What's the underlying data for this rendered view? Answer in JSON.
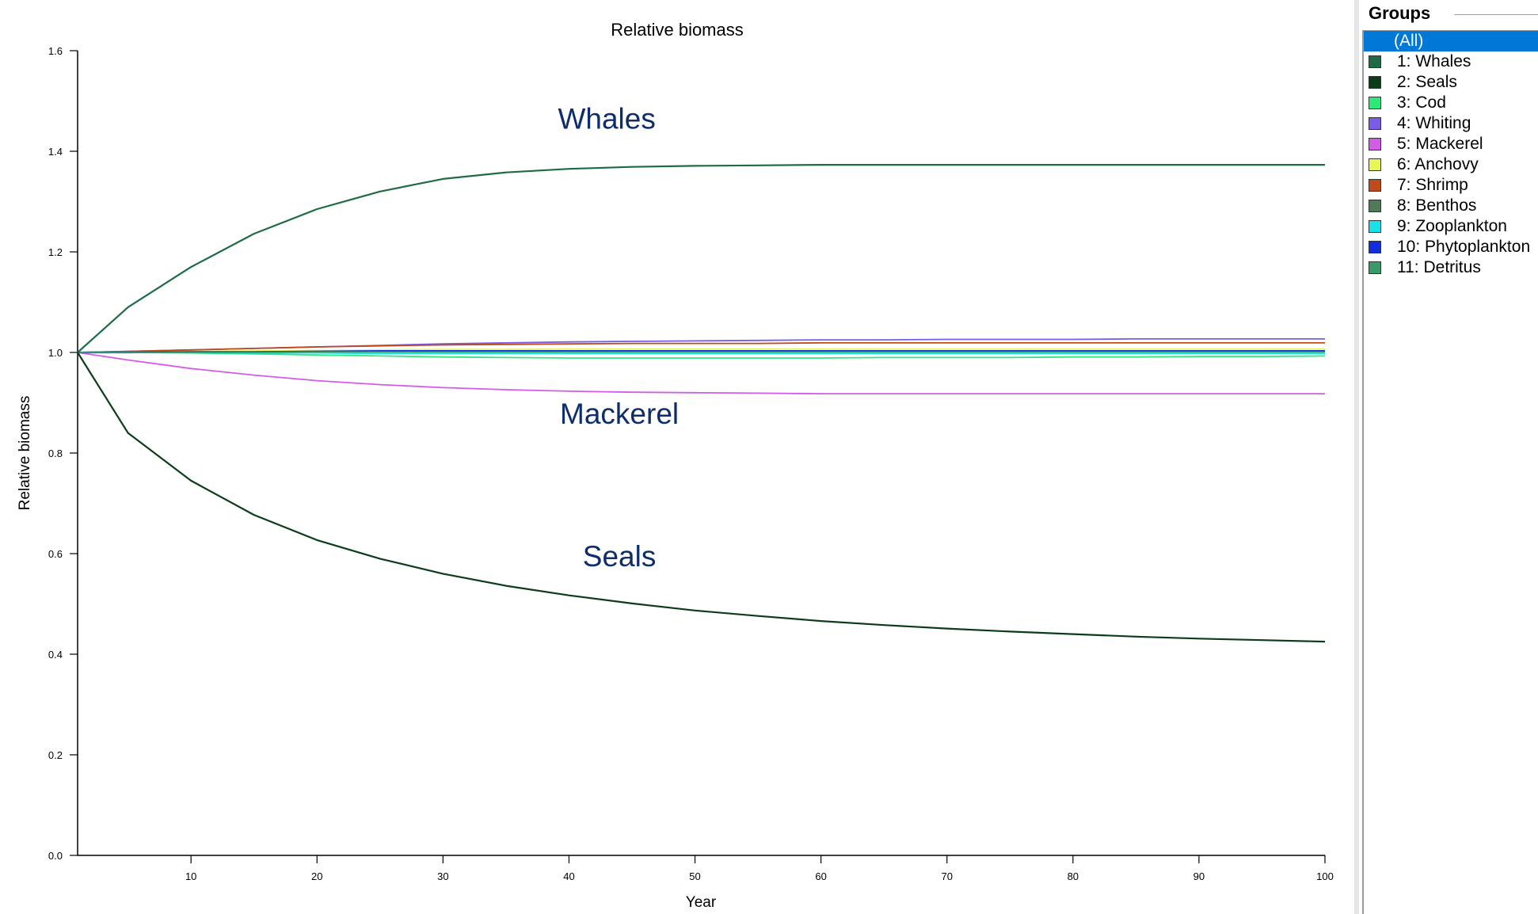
{
  "chart_data": {
    "type": "line",
    "title": "Relative biomass",
    "xlabel": "Year",
    "ylabel": "Relative biomass",
    "xlim": [
      1,
      100
    ],
    "ylim": [
      0,
      1.6
    ],
    "x_ticks": [
      10,
      20,
      30,
      40,
      50,
      60,
      70,
      80,
      90,
      100
    ],
    "y_ticks": [
      0.0,
      0.2,
      0.4,
      0.6,
      0.8,
      1.0,
      1.2,
      1.4,
      1.6
    ],
    "y_tick_labels": [
      "0.0",
      "0.2",
      "0.4",
      "0.6",
      "0.8",
      "1.0",
      "1.2",
      "1.4",
      "1.6"
    ],
    "x_tick_labels": [
      "10",
      "20",
      "30",
      "40",
      "50",
      "60",
      "70",
      "80",
      "90",
      "100"
    ],
    "x": [
      1,
      5,
      10,
      15,
      20,
      25,
      30,
      35,
      40,
      45,
      50,
      55,
      60,
      65,
      70,
      75,
      80,
      85,
      90,
      95,
      100
    ],
    "series": [
      {
        "name": "1: Whales",
        "color": "#1f6b45",
        "values": [
          1.0,
          1.09,
          1.17,
          1.236,
          1.285,
          1.32,
          1.345,
          1.358,
          1.365,
          1.369,
          1.371,
          1.372,
          1.373,
          1.373,
          1.373,
          1.373,
          1.373,
          1.373,
          1.373,
          1.373,
          1.373
        ]
      },
      {
        "name": "2: Seals",
        "color": "#0b3d1a",
        "values": [
          1.0,
          0.84,
          0.745,
          0.677,
          0.627,
          0.59,
          0.56,
          0.536,
          0.517,
          0.501,
          0.487,
          0.476,
          0.466,
          0.458,
          0.451,
          0.445,
          0.44,
          0.435,
          0.431,
          0.428,
          0.425
        ]
      },
      {
        "name": "3: Cod",
        "color": "#2ee87a",
        "values": [
          1.0,
          1.0,
          0.999,
          0.997,
          0.995,
          0.993,
          0.991,
          0.99,
          0.989,
          0.989,
          0.989,
          0.989,
          0.989,
          0.99,
          0.99,
          0.99,
          0.991,
          0.991,
          0.992,
          0.992,
          0.993
        ]
      },
      {
        "name": "4: Whiting",
        "color": "#7b5ce6",
        "values": [
          1.0,
          1.002,
          1.005,
          1.008,
          1.011,
          1.014,
          1.017,
          1.019,
          1.021,
          1.022,
          1.023,
          1.024,
          1.025,
          1.025,
          1.026,
          1.026,
          1.026,
          1.027,
          1.027,
          1.027,
          1.027
        ]
      },
      {
        "name": "5: Mackerel",
        "color": "#d35ce6",
        "values": [
          1.0,
          0.985,
          0.968,
          0.955,
          0.944,
          0.936,
          0.93,
          0.926,
          0.923,
          0.921,
          0.92,
          0.919,
          0.918,
          0.918,
          0.918,
          0.918,
          0.918,
          0.918,
          0.918,
          0.918,
          0.918
        ]
      },
      {
        "name": "6: Anchovy",
        "color": "#e8f55a",
        "values": [
          1.0,
          1.001,
          1.002,
          1.003,
          1.004,
          1.005,
          1.006,
          1.006,
          1.007,
          1.007,
          1.007,
          1.007,
          1.007,
          1.007,
          1.007,
          1.007,
          1.007,
          1.007,
          1.007,
          1.007,
          1.007
        ]
      },
      {
        "name": "7: Shrimp",
        "color": "#c04a1a",
        "values": [
          1.0,
          1.002,
          1.005,
          1.008,
          1.011,
          1.013,
          1.015,
          1.016,
          1.017,
          1.018,
          1.018,
          1.018,
          1.019,
          1.019,
          1.019,
          1.019,
          1.019,
          1.019,
          1.019,
          1.019,
          1.019
        ]
      },
      {
        "name": "8: Benthos",
        "color": "#4f7a5a",
        "values": [
          1.0,
          1.0,
          1.001,
          1.001,
          1.002,
          1.002,
          1.002,
          1.002,
          1.002,
          1.002,
          1.002,
          1.002,
          1.002,
          1.002,
          1.002,
          1.002,
          1.002,
          1.002,
          1.002,
          1.002,
          1.002
        ]
      },
      {
        "name": "9: Zooplankton",
        "color": "#1ae0e8",
        "values": [
          1.0,
          1.0,
          1.0,
          0.999,
          0.999,
          0.998,
          0.998,
          0.998,
          0.998,
          0.998,
          0.998,
          0.998,
          0.998,
          0.998,
          0.998,
          0.998,
          0.998,
          0.998,
          0.998,
          0.998,
          0.998
        ]
      },
      {
        "name": "10: Phytoplankton",
        "color": "#1030e0",
        "values": [
          1.0,
          1.0,
          1.001,
          1.001,
          1.002,
          1.003,
          1.003,
          1.003,
          1.003,
          1.003,
          1.003,
          1.003,
          1.003,
          1.003,
          1.003,
          1.003,
          1.003,
          1.003,
          1.003,
          1.003,
          1.003
        ]
      },
      {
        "name": "11: Detritus",
        "color": "#3a9a6a",
        "values": [
          1.0,
          1.0,
          1.0,
          1.0,
          1.001,
          1.001,
          1.001,
          1.001,
          1.001,
          1.001,
          1.001,
          1.001,
          1.001,
          1.001,
          1.001,
          1.001,
          1.001,
          1.001,
          1.001,
          1.001,
          1.001
        ]
      }
    ],
    "annotations": [
      {
        "text": "Whales",
        "x": 43,
        "y": 1.445
      },
      {
        "text": "Mackerel",
        "x": 44,
        "y": 0.858
      },
      {
        "text": "Seals",
        "x": 44,
        "y": 0.575
      }
    ],
    "grid": false
  },
  "groups_panel": {
    "header": "Groups",
    "items": [
      {
        "label": "(All)",
        "selected": true,
        "color": ""
      },
      {
        "label": "1: Whales",
        "selected": false,
        "color": "#1f6b45"
      },
      {
        "label": "2: Seals",
        "selected": false,
        "color": "#0b3d1a"
      },
      {
        "label": "3: Cod",
        "selected": false,
        "color": "#2ee87a"
      },
      {
        "label": "4: Whiting",
        "selected": false,
        "color": "#7b5ce6"
      },
      {
        "label": "5: Mackerel",
        "selected": false,
        "color": "#d35ce6"
      },
      {
        "label": "6: Anchovy",
        "selected": false,
        "color": "#e8f55a"
      },
      {
        "label": "7: Shrimp",
        "selected": false,
        "color": "#c04a1a"
      },
      {
        "label": "8: Benthos",
        "selected": false,
        "color": "#4f7a5a"
      },
      {
        "label": "9: Zooplankton",
        "selected": false,
        "color": "#1ae0e8"
      },
      {
        "label": "10: Phytoplankton",
        "selected": false,
        "color": "#1030e0"
      },
      {
        "label": "11: Detritus",
        "selected": false,
        "color": "#3a9a6a"
      }
    ]
  }
}
